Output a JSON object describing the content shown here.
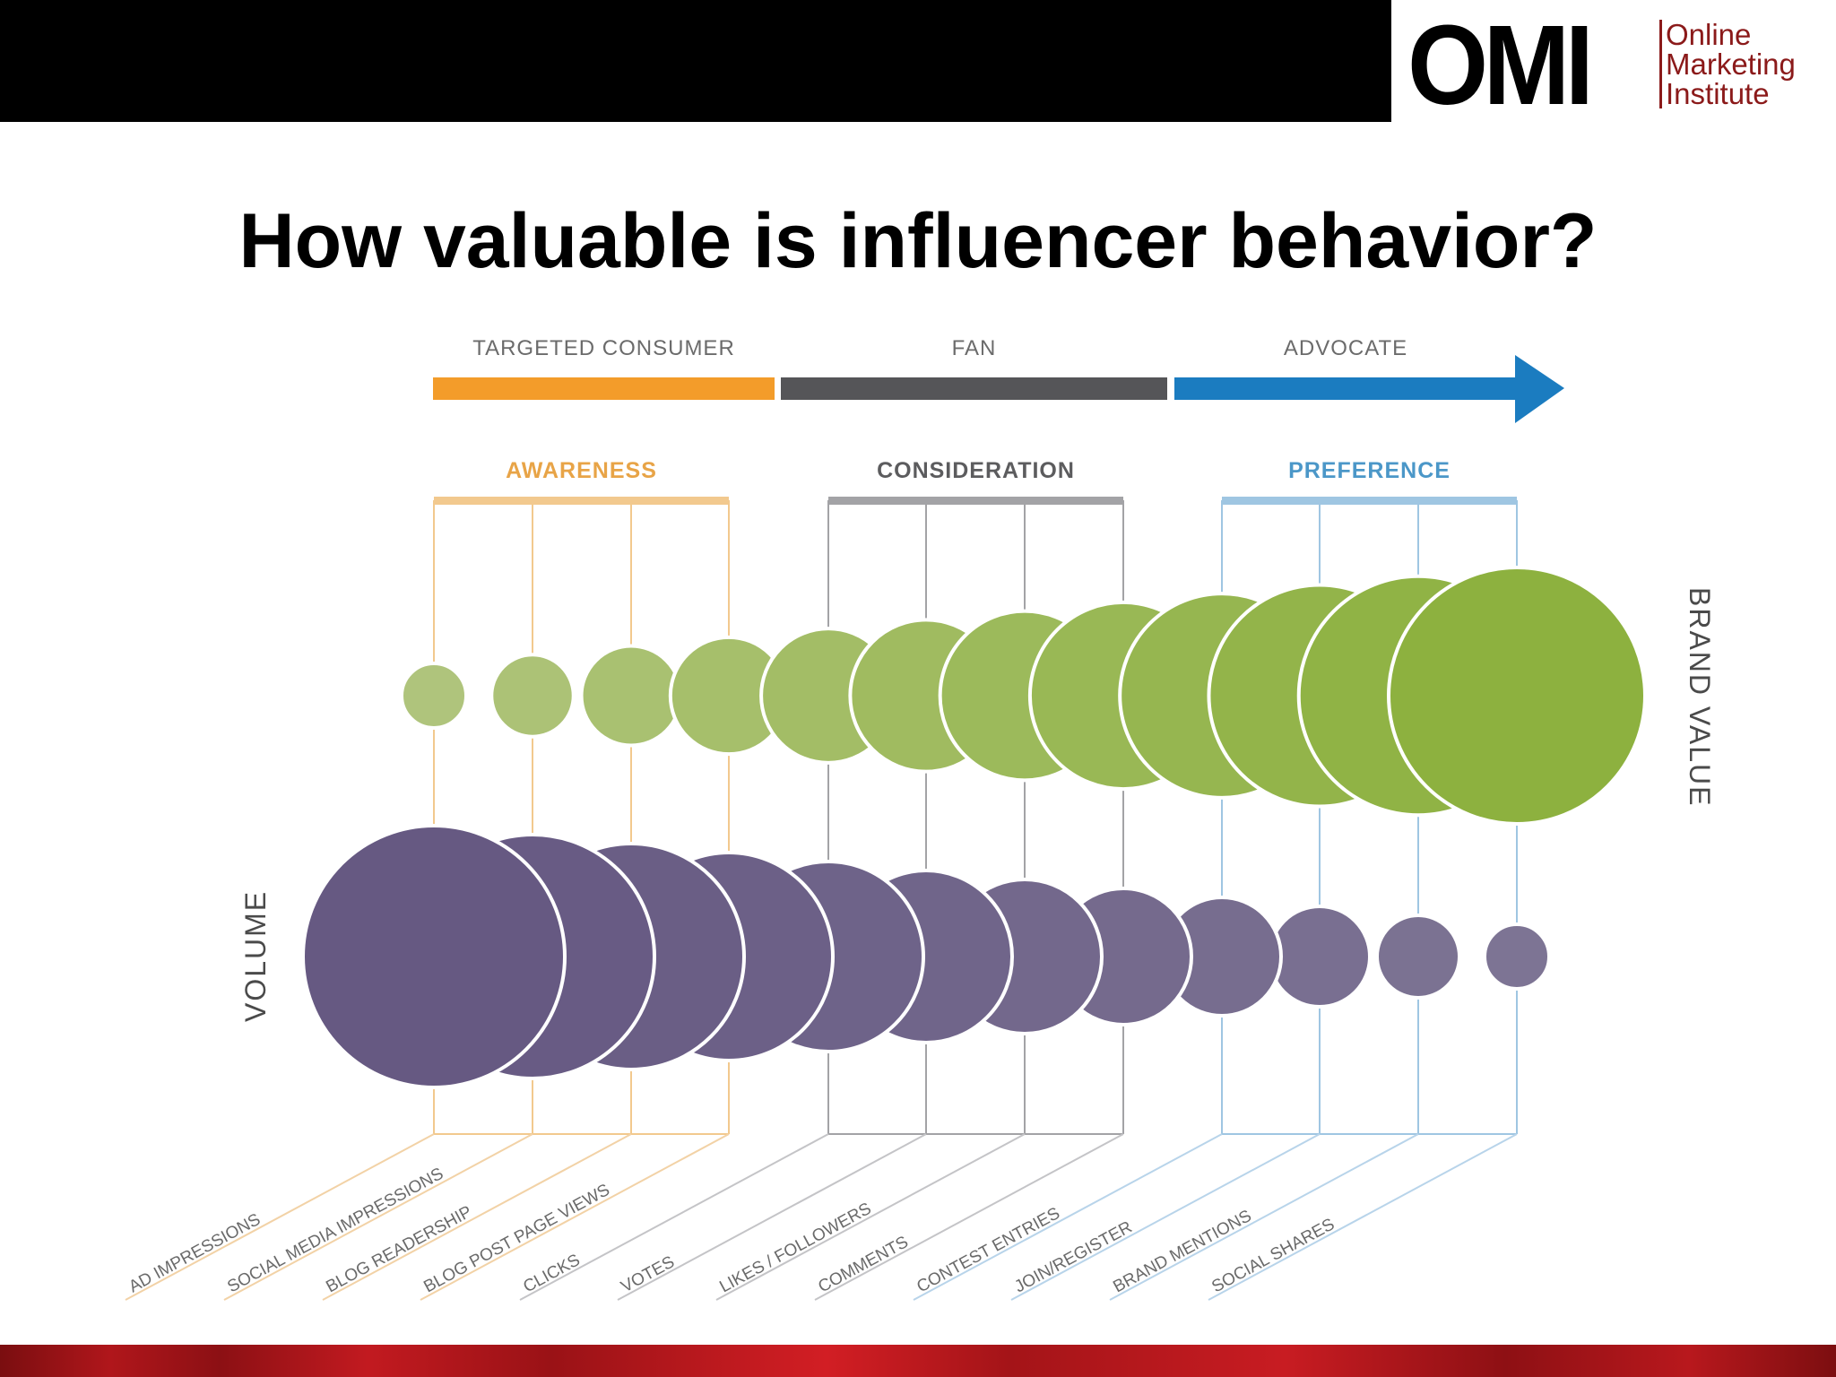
{
  "header": {
    "logo_mark": "OMI",
    "logo_lines": [
      "Online",
      "Marketing",
      "Institute"
    ]
  },
  "title": "How valuable is influencer behavior?",
  "chart_data": {
    "type": "bubble",
    "stages": [
      {
        "label": "TARGETED CONSUMER",
        "color": "#f39c2a"
      },
      {
        "label": "FAN",
        "color": "#555558"
      },
      {
        "label": "ADVOCATE",
        "color": "#1b7cc0"
      }
    ],
    "funnel": [
      {
        "label": "AWARENESS",
        "color": "#e8a447",
        "line_color": "#f2c98e"
      },
      {
        "label": "CONSIDERATION",
        "color": "#5c5c5e",
        "line_color": "#a3a3a6"
      },
      {
        "label": "PREFERENCE",
        "color": "#4b97c8",
        "line_color": "#9fc6e2"
      }
    ],
    "y_axis_right": "BRAND VALUE",
    "y_axis_left": "VOLUME",
    "categories": [
      "AD IMPRESSIONS",
      "SOCIAL MEDIA IMPRESSIONS",
      "BLOG READERSHIP",
      "BLOG POST PAGE VIEWS",
      "CLICKS",
      "VOTES",
      "LIKES / FOLLOWERS",
      "COMMENTS",
      "CONTEST ENTRIES",
      "JOIN/REGISTER",
      "BRAND MENTIONS",
      "SOCIAL SHARES"
    ],
    "series": [
      {
        "name": "BRAND VALUE",
        "color_start": "#afc47c",
        "color_end": "#8db13f",
        "values": [
          1,
          2,
          3,
          4,
          5,
          6,
          7,
          8,
          9,
          10,
          11,
          12
        ]
      },
      {
        "name": "VOLUME",
        "color_start": "#7d7494",
        "color_end": "#665982",
        "values": [
          12,
          11,
          10,
          9,
          8,
          7,
          6,
          5,
          4,
          3,
          2,
          1
        ]
      }
    ]
  },
  "colors": {
    "top_bar": "#000000",
    "bottom_bar": "#b0161b",
    "logo_accent": "#8b1a1a"
  }
}
